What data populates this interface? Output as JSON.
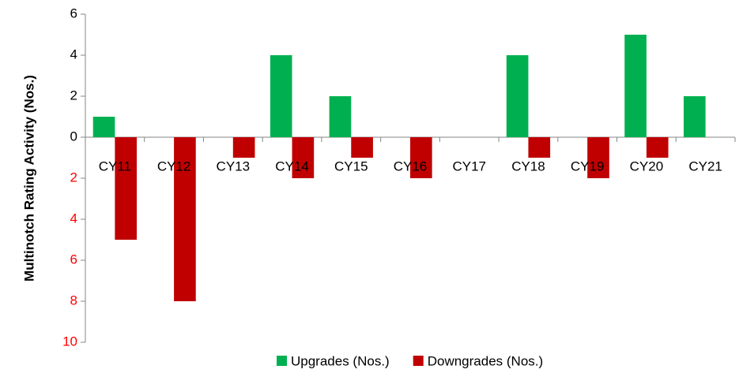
{
  "chart_data": {
    "type": "bar",
    "y_axis_label": "Multinotch Rating Activity (Nos.)",
    "categories": [
      "CY11",
      "CY12",
      "CY13",
      "CY14",
      "CY15",
      "CY16",
      "CY17",
      "CY18",
      "CY19",
      "CY20",
      "CY21"
    ],
    "series": [
      {
        "name": "Upgrades (Nos.)",
        "color": "#00b050",
        "values": [
          1,
          0,
          0,
          4,
          2,
          0,
          0,
          4,
          0,
          5,
          2
        ]
      },
      {
        "name": "Downgrades (Nos.)",
        "color": "#c00000",
        "values": [
          -5,
          -8,
          -1,
          -2,
          -1,
          -2,
          0,
          -1,
          -2,
          -1,
          0
        ]
      }
    ],
    "ylim": [
      -10,
      6
    ],
    "yticks": [
      6,
      4,
      2,
      0,
      {
        "value": -2,
        "label": "2"
      },
      {
        "value": -4,
        "label": "4"
      },
      {
        "value": -6,
        "label": "6"
      },
      {
        "value": -8,
        "label": "8"
      },
      {
        "value": -10,
        "label": "10"
      }
    ],
    "negative_tick_color": "#ff0000",
    "legend": "bottom",
    "grid": false
  }
}
